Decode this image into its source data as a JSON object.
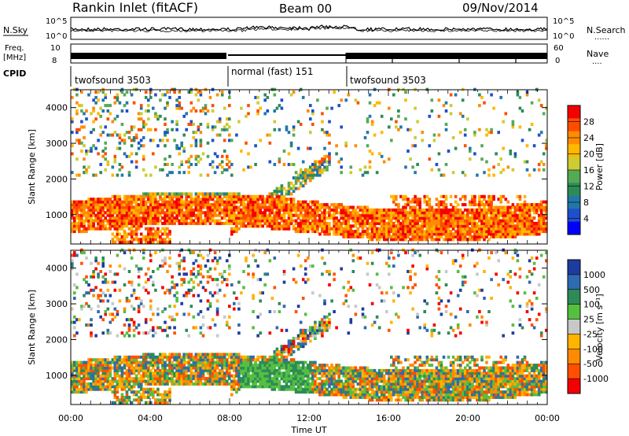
{
  "header": {
    "station": "Rankin Inlet (fitACF)",
    "beam": "Beam 00",
    "date": "09/Nov/2014"
  },
  "noise_panel": {
    "left_label": "N.Sky",
    "right_label": "N.Search",
    "right_dots": "......",
    "y_ticks_left": [
      "10^5",
      "10^0"
    ],
    "y_ticks_right": [
      "10^5",
      "10^0"
    ]
  },
  "freq_panel": {
    "left_label_1": "Freq.",
    "left_label_2": "[MHz]",
    "y_ticks_left": [
      "10",
      "8"
    ],
    "right_label": "Nave",
    "right_dots": "....",
    "y_ticks_right": [
      "60",
      "0"
    ]
  },
  "cpid": {
    "label": "CPID",
    "segments": [
      {
        "name": "twofsound 3503",
        "start_hour": 0,
        "end_hour": 8
      },
      {
        "name": "normal (fast) 151",
        "start_hour": 8,
        "end_hour": 14
      },
      {
        "name": "twofsound 3503",
        "start_hour": 14,
        "end_hour": 24
      }
    ]
  },
  "chart_data": [
    {
      "type": "heatmap",
      "title": "",
      "xlabel": "Time UT",
      "ylabel": "Slant Range [km]",
      "xlim": [
        0,
        24
      ],
      "ylim": [
        180,
        4500
      ],
      "x_tick_labels": [
        "00:00",
        "04:00",
        "08:00",
        "12:00",
        "16:00",
        "20:00",
        "00:00"
      ],
      "y_tick_labels": [
        "1000",
        "2000",
        "3000",
        "4000"
      ],
      "y_ticks": [
        1000,
        2000,
        3000,
        4000
      ],
      "colorbar": {
        "label": "Power [dB]",
        "tick_labels": [
          "28",
          "24",
          "20",
          "16",
          "12",
          "8",
          "4"
        ],
        "colors": [
          "#f50000",
          "#ff4d00",
          "#ff8c00",
          "#ffb800",
          "#cccc33",
          "#55aa55",
          "#2e8b57",
          "#2277aa",
          "#1e50cc",
          "#0000ff"
        ]
      }
    },
    {
      "type": "heatmap",
      "title": "",
      "xlabel": "Time UT",
      "ylabel": "Slant Range [km]",
      "xlim": [
        0,
        24
      ],
      "ylim": [
        180,
        4500
      ],
      "x_tick_labels": [
        "00:00",
        "04:00",
        "08:00",
        "12:00",
        "16:00",
        "20:00",
        "00:00"
      ],
      "y_tick_labels": [
        "1000",
        "2000",
        "3000",
        "4000"
      ],
      "y_ticks": [
        1000,
        2000,
        3000,
        4000
      ],
      "colorbar": {
        "label": "Velocity [m s⁻¹]",
        "tick_labels": [
          "1000",
          "500",
          "100",
          "25",
          "-25",
          "-100",
          "-500",
          "-1000"
        ],
        "colors": [
          "#1e3ca0",
          "#2e6bb0",
          "#2e8b57",
          "#55c040",
          "#c8c8c8",
          "#ffb400",
          "#ff8c00",
          "#ff5000",
          "#f50000"
        ]
      }
    }
  ]
}
